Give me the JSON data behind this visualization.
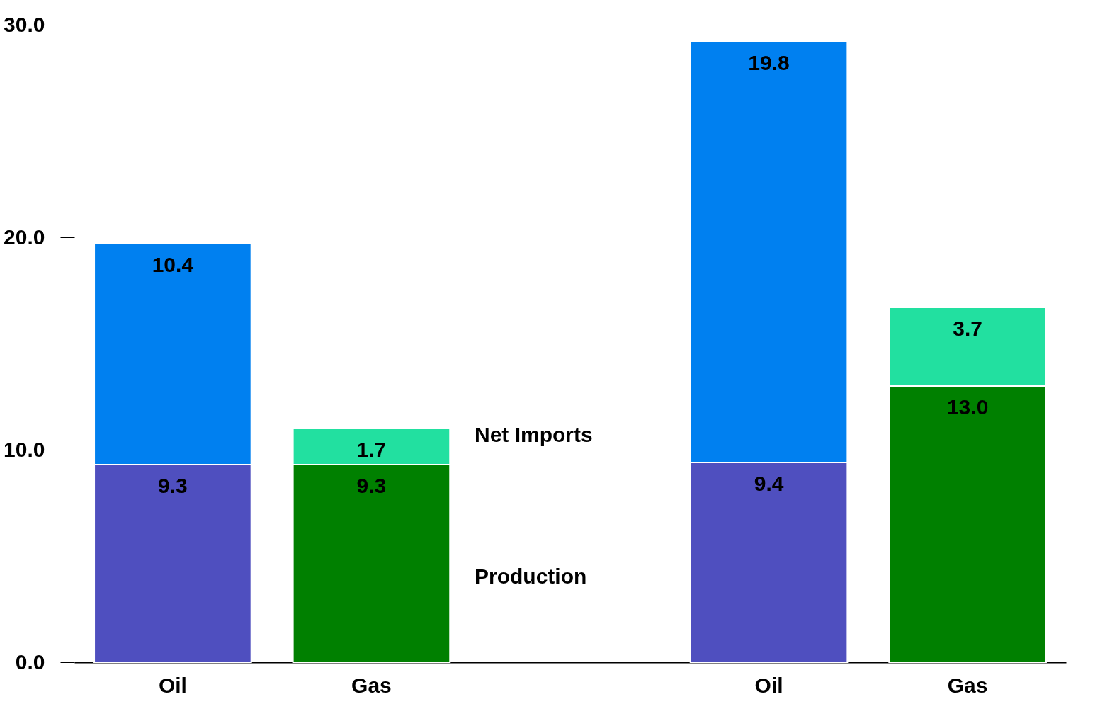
{
  "chart_data": {
    "type": "bar",
    "stacked": true,
    "categories": [
      "Oil",
      "Gas",
      null,
      "Oil",
      "Gas"
    ],
    "series": [
      {
        "name": "Production",
        "colors": [
          "#4f4fbf",
          "#008000",
          null,
          "#4f4fbf",
          "#008000"
        ],
        "values": [
          9.3,
          9.3,
          null,
          9.4,
          13.0
        ],
        "value_labels": [
          "9.3",
          "9.3",
          null,
          "9.4",
          "13.0"
        ]
      },
      {
        "name": "Net Imports",
        "colors": [
          "#0080f0",
          "#22e0a0",
          null,
          "#0080f0",
          "#22e0a0"
        ],
        "values": [
          10.4,
          1.7,
          null,
          19.8,
          3.7
        ],
        "value_labels": [
          "10.4",
          "1.7",
          null,
          "19.8",
          "3.7"
        ]
      }
    ],
    "ylim": [
      0,
      30
    ],
    "yticks": [
      {
        "value": 0,
        "label": "0.0"
      },
      {
        "value": 10,
        "label": "10.0"
      },
      {
        "value": 20,
        "label": "20.0"
      },
      {
        "value": 30,
        "label": "30.0"
      }
    ],
    "grid": false
  }
}
